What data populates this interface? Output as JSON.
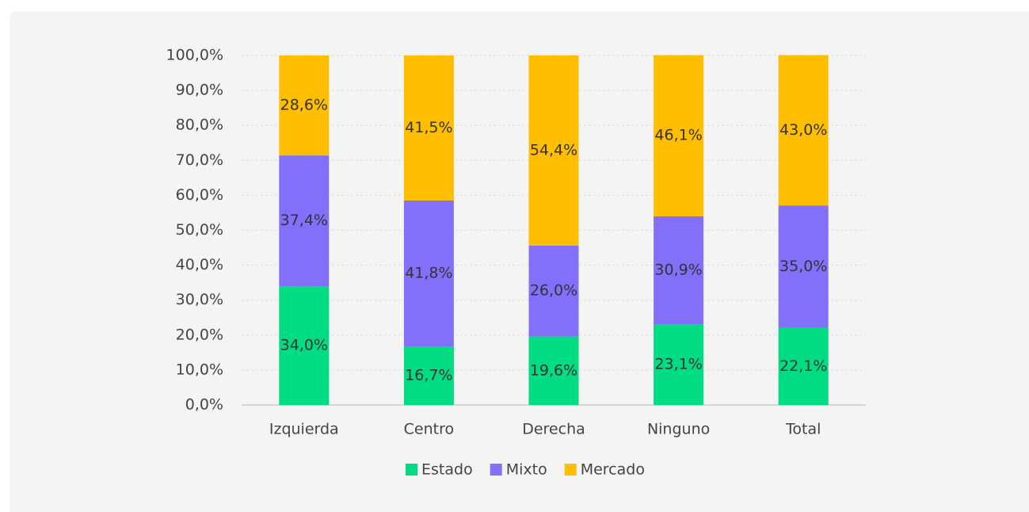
{
  "chart_data": {
    "type": "stacked-bar",
    "categories": [
      "Izquierda",
      "Centro",
      "Derecha",
      "Ninguno",
      "Total"
    ],
    "series": [
      {
        "name": "Estado",
        "color": "#00dc82",
        "values": [
          34.0,
          16.7,
          19.6,
          23.1,
          22.1
        ],
        "value_labels": [
          "34,0%",
          "16,7%",
          "19,6%",
          "23,1%",
          "22,1%"
        ]
      },
      {
        "name": "Mixto",
        "color": "#8270fb",
        "values": [
          37.4,
          41.8,
          26.0,
          30.9,
          35.0
        ],
        "value_labels": [
          "37,4%",
          "41,8%",
          "26,0%",
          "30,9%",
          "35,0%"
        ]
      },
      {
        "name": "Mercado",
        "color": "#ffbe00",
        "values": [
          28.6,
          41.5,
          54.4,
          46.1,
          43.0
        ],
        "value_labels": [
          "28,6%",
          "41,5%",
          "54,4%",
          "46,1%",
          "43,0%"
        ]
      }
    ],
    "ylim": [
      0,
      100
    ],
    "yticks": [
      {
        "value": 0,
        "label": "0,0%"
      },
      {
        "value": 10,
        "label": "10,0%"
      },
      {
        "value": 20,
        "label": "20,0%"
      },
      {
        "value": 30,
        "label": "30,0%"
      },
      {
        "value": 40,
        "label": "40,0%"
      },
      {
        "value": 50,
        "label": "50,0%"
      },
      {
        "value": 60,
        "label": "60,0%"
      },
      {
        "value": 70,
        "label": "70,0%"
      },
      {
        "value": 80,
        "label": "80,0%"
      },
      {
        "value": 90,
        "label": "90,0%"
      },
      {
        "value": 100,
        "label": "100,0%"
      }
    ],
    "grid": true,
    "legend": "bottom"
  }
}
